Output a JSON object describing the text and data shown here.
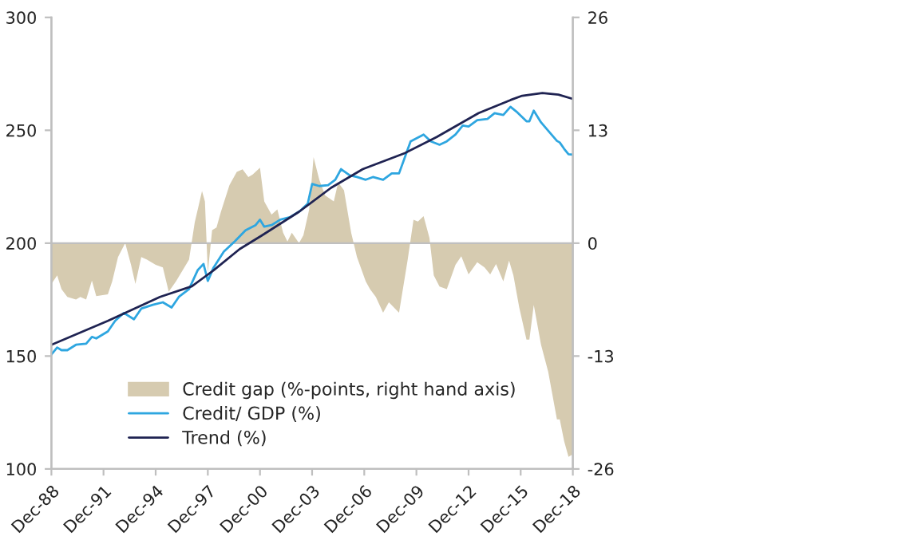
{
  "chart_data": {
    "type": "line",
    "xlim": [
      "1988-12",
      "2018-12"
    ],
    "xticks": [
      {
        "value": "1988-12",
        "label": "Dec-88"
      },
      {
        "value": "1991-12",
        "label": "Dec-91"
      },
      {
        "value": "1994-12",
        "label": "Dec-94"
      },
      {
        "value": "1997-12",
        "label": "Dec-97"
      },
      {
        "value": "2000-12",
        "label": "Dec-00"
      },
      {
        "value": "2003-12",
        "label": "Dec-03"
      },
      {
        "value": "2006-12",
        "label": "Dec-06"
      },
      {
        "value": "2009-12",
        "label": "Dec-09"
      },
      {
        "value": "2012-12",
        "label": "Dec-12"
      },
      {
        "value": "2015-12",
        "label": "Dec-15"
      },
      {
        "value": "2018-12",
        "label": "Dec-18"
      }
    ],
    "ylim": [
      100,
      300
    ],
    "yticks": [
      100,
      150,
      200,
      250,
      300
    ],
    "y2lim": [
      -26,
      26
    ],
    "y2ticks": [
      -26,
      -13,
      0,
      13,
      26
    ],
    "legend": "bottom",
    "series": [
      {
        "name": "Credit gap (%-points, right hand axis)",
        "type": "area",
        "axis": "y2",
        "color": "#d6cbb0",
        "x": [
          "1988-12",
          "1989-04",
          "1989-07",
          "1989-11",
          "1990-05",
          "1990-08",
          "1990-12",
          "1991-04",
          "1991-07",
          "1992-03",
          "1992-06",
          "1992-10",
          "1993-03",
          "1993-07",
          "1993-10",
          "1994-02",
          "1994-06",
          "1994-12",
          "1995-05",
          "1995-09",
          "1996-02",
          "1996-11",
          "1997-03",
          "1997-08",
          "1997-10",
          "1997-12",
          "1998-03",
          "1998-06",
          "1998-09",
          "1999-03",
          "1999-08",
          "1999-12",
          "2000-04",
          "2000-07",
          "2000-12",
          "2001-03",
          "2001-08",
          "2001-12",
          "2002-04",
          "2002-07",
          "2002-10",
          "2003-03",
          "2003-06",
          "2003-10",
          "2004-01",
          "2004-05",
          "2004-09",
          "2005-03",
          "2005-06",
          "2005-10",
          "2006-03",
          "2006-07",
          "2007-01",
          "2007-04",
          "2007-08",
          "2008-01",
          "2008-05",
          "2008-12",
          "2009-06",
          "2009-10",
          "2010-01",
          "2010-05",
          "2010-09",
          "2010-12",
          "2011-04",
          "2011-09",
          "2012-03",
          "2012-07",
          "2012-12",
          "2013-06",
          "2013-11",
          "2014-03",
          "2014-07",
          "2014-12",
          "2015-04",
          "2015-07",
          "2015-11",
          "2016-04",
          "2016-06",
          "2016-09",
          "2017-02",
          "2017-07",
          "2018-01",
          "2018-03",
          "2018-06",
          "2018-09",
          "2018-12"
        ],
        "values": [
          -4.7,
          -3.7,
          -5.3,
          -6.2,
          -6.5,
          -6.2,
          -6.5,
          -4.3,
          -6.1,
          -5.9,
          -4.4,
          -1.6,
          0.0,
          -2.5,
          -4.7,
          -1.6,
          -1.9,
          -2.5,
          -2.8,
          -5.6,
          -4.4,
          -1.9,
          2.4,
          6.0,
          4.8,
          -3.4,
          1.5,
          1.8,
          3.6,
          6.7,
          8.2,
          8.5,
          7.6,
          7.9,
          8.7,
          4.8,
          3.3,
          3.9,
          1.2,
          0.2,
          1.2,
          0.0,
          0.9,
          3.9,
          9.9,
          7.3,
          5.5,
          4.8,
          7.0,
          6.1,
          1.2,
          -1.6,
          -4.4,
          -5.3,
          -6.2,
          -8.0,
          -6.8,
          -8.0,
          -1.9,
          2.7,
          2.5,
          3.1,
          0.6,
          -3.7,
          -5.0,
          -5.3,
          -2.5,
          -1.5,
          -3.6,
          -2.2,
          -2.8,
          -3.6,
          -2.4,
          -4.4,
          -2.0,
          -3.7,
          -7.4,
          -11.1,
          -11.1,
          -7.1,
          -11.7,
          -14.8,
          -20.3,
          -20.3,
          -22.8,
          -24.6,
          -24.3
        ]
      },
      {
        "name": "Credit/ GDP (%)",
        "color": "#2ea6e0",
        "x": [
          "1988-12",
          "1989-04",
          "1989-07",
          "1989-11",
          "1990-05",
          "1990-12",
          "1991-04",
          "1991-07",
          "1992-03",
          "1992-08",
          "1993-02",
          "1993-09",
          "1994-02",
          "1994-10",
          "1995-05",
          "1995-11",
          "1996-04",
          "1996-11",
          "1997-05",
          "1997-09",
          "1997-12",
          "1998-04",
          "1998-11",
          "1999-07",
          "2000-02",
          "2000-09",
          "2000-12",
          "2001-03",
          "2001-08",
          "2002-02",
          "2002-09",
          "2003-04",
          "2003-09",
          "2003-12",
          "2004-05",
          "2004-11",
          "2005-04",
          "2005-08",
          "2006-02",
          "2006-07",
          "2007-01",
          "2007-06",
          "2008-01",
          "2008-07",
          "2008-12",
          "2009-08",
          "2010-05",
          "2010-10",
          "2011-04",
          "2011-09",
          "2012-03",
          "2012-08",
          "2012-12",
          "2013-06",
          "2014-01",
          "2014-06",
          "2014-12",
          "2015-05",
          "2015-09",
          "2016-04",
          "2016-06",
          "2016-09",
          "2017-02",
          "2017-07",
          "2018-01",
          "2018-03",
          "2018-06",
          "2018-09",
          "2018-12"
        ],
        "values": [
          150.7,
          153.8,
          152.6,
          152.6,
          155.0,
          155.5,
          158.5,
          157.8,
          160.9,
          165.6,
          169.1,
          166.3,
          171.0,
          172.7,
          173.8,
          171.5,
          176.2,
          179.7,
          188.0,
          190.8,
          183.3,
          189.2,
          196.2,
          201.0,
          205.7,
          208.0,
          210.4,
          207.3,
          208.0,
          210.4,
          211.6,
          214.4,
          217.5,
          226.2,
          225.3,
          225.7,
          228.1,
          232.8,
          230.0,
          229.3,
          228.1,
          229.3,
          228.1,
          230.9,
          230.9,
          245.1,
          248.1,
          245.1,
          243.6,
          245.1,
          248.1,
          252.1,
          251.7,
          254.5,
          255.0,
          257.6,
          256.8,
          260.4,
          258.3,
          254.0,
          254.0,
          258.7,
          253.5,
          249.8,
          245.3,
          244.6,
          241.8,
          239.4,
          239.2
        ]
      },
      {
        "name": "Trend (%)",
        "color": "#1f2352",
        "x": [
          "1988-12",
          "1992-03",
          "1995-03",
          "1997-01",
          "1998-04",
          "1999-10",
          "2001-01",
          "2003-03",
          "2005-01",
          "2006-11",
          "2009-04",
          "2011-02",
          "2013-07",
          "2015-05",
          "2016-01",
          "2017-03",
          "2018-02",
          "2018-12"
        ],
        "values": [
          155.0,
          165.6,
          176.2,
          180.9,
          188.0,
          197.4,
          203.3,
          213.9,
          224.5,
          232.8,
          239.9,
          247.0,
          257.6,
          263.4,
          265.3,
          266.5,
          265.8,
          263.9
        ]
      }
    ]
  }
}
